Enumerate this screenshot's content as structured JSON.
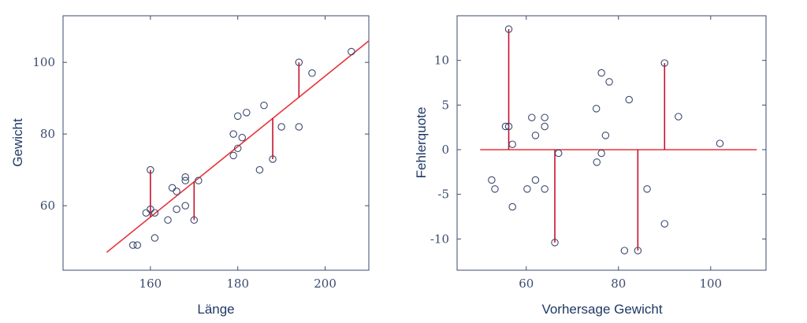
{
  "chart_data": [
    {
      "type": "scatter",
      "xlabel": "Länge",
      "ylabel": "Gewicht",
      "xlim": [
        140,
        210
      ],
      "ylim": [
        42,
        113
      ],
      "xticks": [
        160,
        180,
        200
      ],
      "yticks": [
        60,
        80,
        100
      ],
      "grid": false,
      "colors": {
        "points": "#3c4a6e",
        "fit": "#e8353b",
        "residuals": "#c8102e"
      },
      "points": [
        [
          156,
          49
        ],
        [
          157,
          49
        ],
        [
          159,
          58
        ],
        [
          160,
          59
        ],
        [
          160,
          70
        ],
        [
          161,
          51
        ],
        [
          161,
          58
        ],
        [
          164,
          56
        ],
        [
          165,
          65
        ],
        [
          166,
          59
        ],
        [
          166,
          64
        ],
        [
          168,
          60
        ],
        [
          168,
          67
        ],
        [
          168,
          68
        ],
        [
          170,
          56
        ],
        [
          171,
          67
        ],
        [
          179,
          74
        ],
        [
          179,
          80
        ],
        [
          180,
          76
        ],
        [
          180,
          85
        ],
        [
          181,
          79
        ],
        [
          182,
          86
        ],
        [
          185,
          70
        ],
        [
          186,
          88
        ],
        [
          188,
          73
        ],
        [
          190,
          82
        ],
        [
          194,
          100
        ],
        [
          194,
          82
        ],
        [
          197,
          97
        ],
        [
          206,
          103
        ]
      ],
      "fit_line": {
        "x": [
          150,
          210
        ],
        "y": [
          47,
          106
        ]
      },
      "residuals": [
        {
          "x": 160,
          "observed": 70,
          "fitted": 56.8
        },
        {
          "x": 170,
          "observed": 56,
          "fitted": 66.7
        },
        {
          "x": 188,
          "observed": 73,
          "fitted": 84.4
        },
        {
          "x": 194,
          "observed": 100,
          "fitted": 90.2
        }
      ]
    },
    {
      "type": "scatter",
      "xlabel": "Vorhersage Gewicht",
      "ylabel": "Fehlerquote",
      "xlim": [
        45,
        112
      ],
      "ylim": [
        -13.5,
        15
      ],
      "xticks": [
        60,
        80,
        100
      ],
      "yticks": [
        -10,
        -5,
        0,
        5,
        10
      ],
      "grid": false,
      "colors": {
        "points": "#3c4a6e",
        "zero_line": "#e8353b",
        "residuals": "#c8102e"
      },
      "zero_line": {
        "x": [
          50,
          110
        ],
        "y": 0
      },
      "points": [
        [
          52.5,
          -3.4
        ],
        [
          53.2,
          -4.4
        ],
        [
          55.5,
          2.6
        ],
        [
          56.2,
          13.5
        ],
        [
          56.2,
          2.6
        ],
        [
          57.0,
          0.6
        ],
        [
          57.0,
          -6.4
        ],
        [
          60.2,
          -4.4
        ],
        [
          61.2,
          3.6
        ],
        [
          62.0,
          1.6
        ],
        [
          62.0,
          -3.4
        ],
        [
          64.0,
          3.6
        ],
        [
          64.0,
          2.6
        ],
        [
          64.0,
          -4.4
        ],
        [
          66.2,
          -10.4
        ],
        [
          67.0,
          -0.4
        ],
        [
          75.2,
          4.6
        ],
        [
          75.3,
          -1.4
        ],
        [
          76.3,
          8.6
        ],
        [
          76.3,
          -0.4
        ],
        [
          77.2,
          1.6
        ],
        [
          78.0,
          7.6
        ],
        [
          81.3,
          -11.3
        ],
        [
          82.3,
          5.6
        ],
        [
          84.2,
          -11.3
        ],
        [
          86.2,
          -4.4
        ],
        [
          90.0,
          9.7
        ],
        [
          90.0,
          -8.3
        ],
        [
          93.0,
          3.7
        ],
        [
          102.0,
          0.7
        ]
      ],
      "residual_stems": [
        {
          "x": 56.2,
          "value": 13.5
        },
        {
          "x": 66.2,
          "value": -10.4
        },
        {
          "x": 84.2,
          "value": -11.3
        },
        {
          "x": 90.0,
          "value": 9.7
        }
      ]
    }
  ]
}
